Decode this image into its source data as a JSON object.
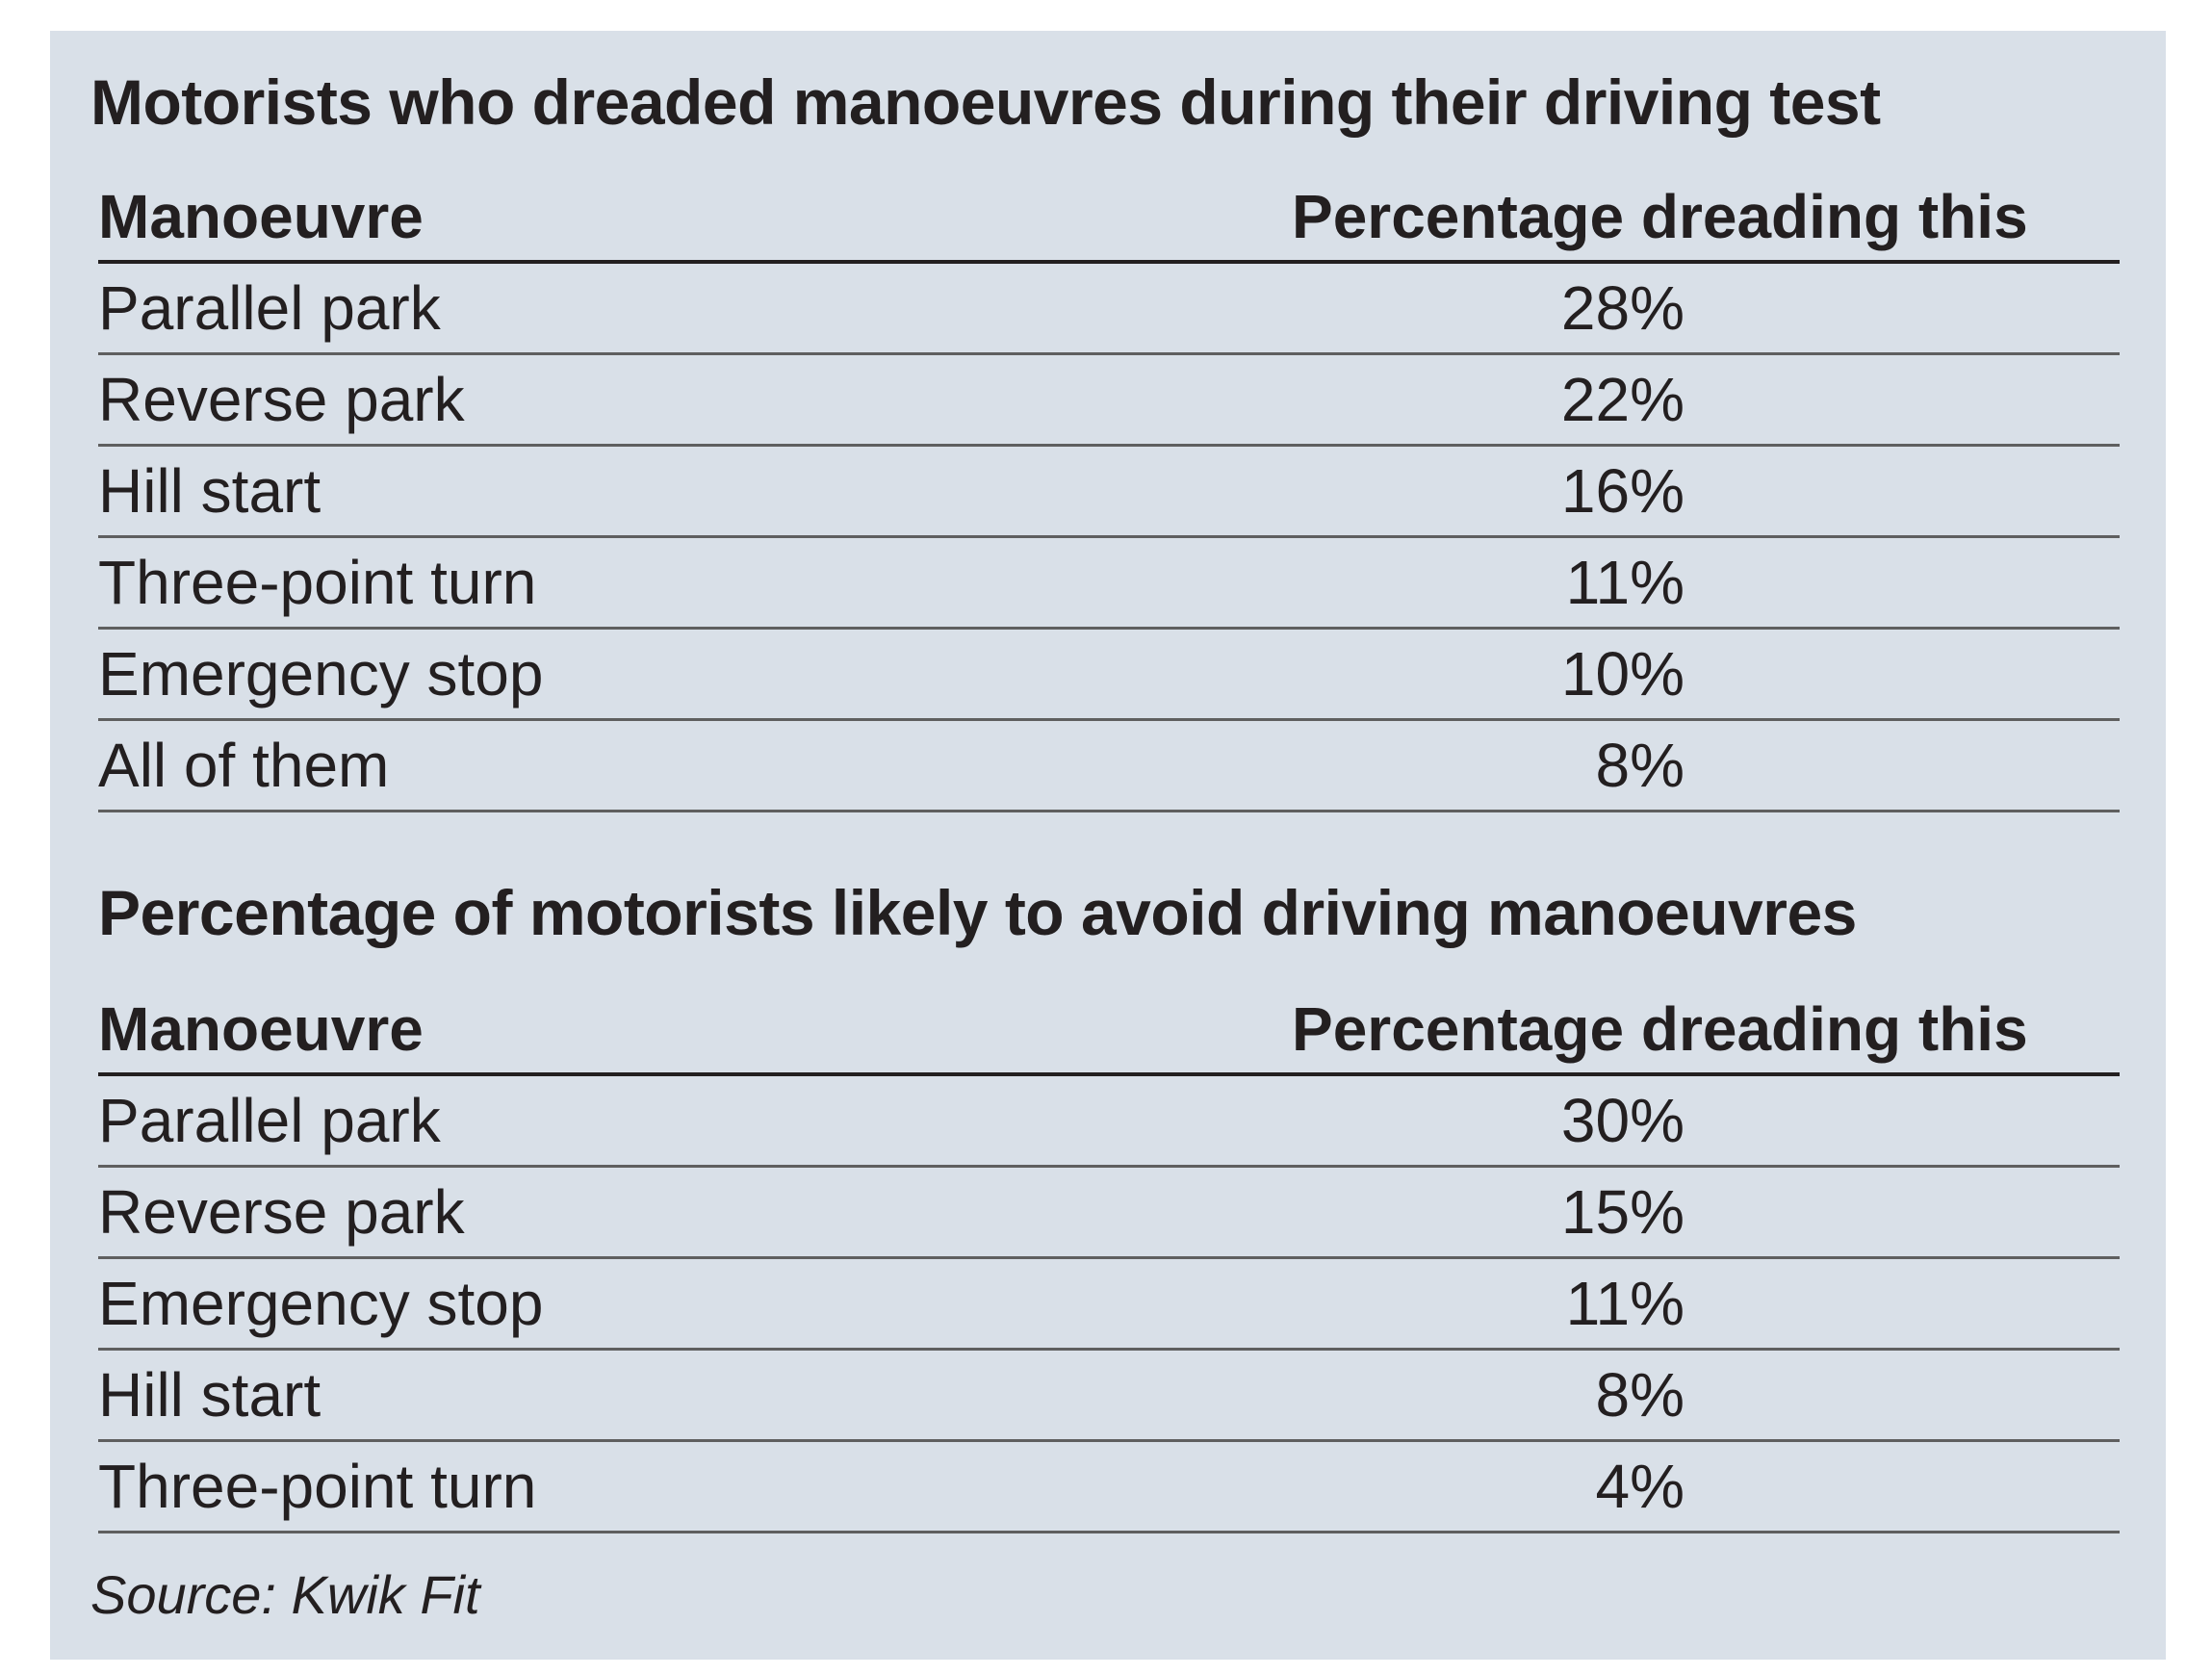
{
  "tables": [
    {
      "title": "Motorists who dreaded manoeuvres during their driving test",
      "headers": [
        "Manoeuvre",
        "Percentage dreading this"
      ],
      "rows": [
        [
          "Parallel park",
          "28%"
        ],
        [
          "Reverse park",
          "22%"
        ],
        [
          "Hill start",
          "16%"
        ],
        [
          "Three-point turn",
          "11%"
        ],
        [
          "Emergency stop",
          "10%"
        ],
        [
          "All of them",
          "8%"
        ]
      ]
    },
    {
      "title": "Percentage of motorists likely to avoid driving manoeuvres",
      "headers": [
        "Manoeuvre",
        "Percentage dreading this"
      ],
      "rows": [
        [
          "Parallel park",
          "30%"
        ],
        [
          "Reverse park",
          "15%"
        ],
        [
          "Emergency stop",
          "11%"
        ],
        [
          "Hill start",
          "8%"
        ],
        [
          "Three-point turn",
          "4%"
        ]
      ]
    }
  ],
  "source": "Source: Kwik Fit",
  "colors": {
    "panel_background": "#d9e0e8",
    "text": "#231f20"
  }
}
